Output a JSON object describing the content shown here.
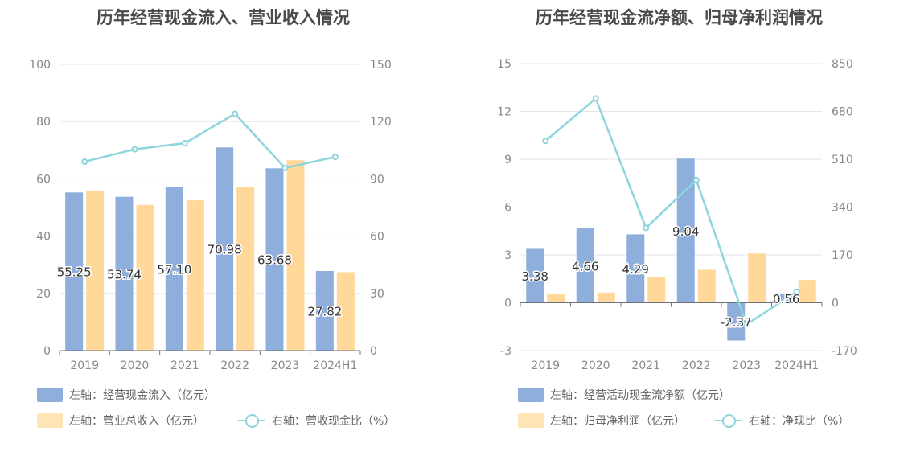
{
  "charts": [
    {
      "title": "历年经营现金流入、营业收入情况",
      "legend": [
        {
          "label": "左轴：经营现金流入（亿元）",
          "kind": "bar",
          "color": "#8eaedb"
        },
        {
          "label": "左轴：营业总收入（亿元）",
          "kind": "bar",
          "color": "#ffe4b5"
        },
        {
          "label": "右轴：营收现金比（%）",
          "kind": "line",
          "color": "#8dd5dc"
        }
      ]
    },
    {
      "title": "历年经营现金流净额、归母净利润情况",
      "legend": [
        {
          "label": "左轴：经营活动现金流净额（亿元）",
          "kind": "bar",
          "color": "#8eaedb"
        },
        {
          "label": "左轴：归母净利润（亿元）",
          "kind": "bar",
          "color": "#ffe4b5"
        },
        {
          "label": "右轴：净现比（%）",
          "kind": "line",
          "color": "#8dd5dc"
        }
      ]
    }
  ],
  "chart_data": [
    {
      "type": "bar",
      "title": "历年经营现金流入、营业收入情况",
      "categories": [
        "2019",
        "2020",
        "2021",
        "2022",
        "2023",
        "2024H1"
      ],
      "left_axis": {
        "ticks": [
          "0",
          "20",
          "40",
          "60",
          "80",
          "100"
        ],
        "ylim": [
          0,
          100
        ]
      },
      "right_axis": {
        "ticks": [
          "0",
          "30",
          "60",
          "90",
          "120",
          "150"
        ],
        "ylim": [
          0,
          150
        ]
      },
      "grid": true,
      "legend_position": "bottom",
      "series": [
        {
          "name": "左轴：经营现金流入（亿元）",
          "type": "bar",
          "axis": "left",
          "color": "#8eaedb",
          "values": [
            55.25,
            53.74,
            57.1,
            70.98,
            63.68,
            27.82
          ],
          "labels": [
            "55.25",
            "53.74",
            "57.10",
            "70.98",
            "63.68",
            "27.82"
          ]
        },
        {
          "name": "左轴：营业总收入（亿元）",
          "type": "bar",
          "axis": "left",
          "color": "#ffd89a",
          "values": [
            55.8,
            50.9,
            52.5,
            57.2,
            66.5,
            27.4
          ]
        },
        {
          "name": "右轴：营收现金比（%）",
          "type": "line",
          "axis": "right",
          "color": "#8dd5dc",
          "values": [
            99,
            105.5,
            108.7,
            124.1,
            95.7,
            101.5
          ]
        }
      ]
    },
    {
      "type": "bar",
      "title": "历年经营现金流净额、归母净利润情况",
      "categories": [
        "2019",
        "2020",
        "2021",
        "2022",
        "2023",
        "2024H1"
      ],
      "left_axis": {
        "ticks": [
          "-3",
          "0",
          "3",
          "6",
          "9",
          "12",
          "15"
        ],
        "ylim": [
          -3,
          15
        ]
      },
      "right_axis": {
        "ticks": [
          "-170",
          "0",
          "170",
          "340",
          "510",
          "680",
          "850"
        ],
        "ylim": [
          -170,
          850
        ]
      },
      "grid": true,
      "legend_position": "bottom",
      "series": [
        {
          "name": "左轴：经营活动现金流净额（亿元）",
          "type": "bar",
          "axis": "left",
          "color": "#8eaedb",
          "values": [
            3.38,
            4.66,
            4.29,
            9.04,
            -2.37,
            0.56
          ],
          "labels": [
            "3.38",
            "4.66",
            "4.29",
            "9.04",
            "-2.37",
            "0.56"
          ]
        },
        {
          "name": "左轴：归母净利润（亿元）",
          "type": "bar",
          "axis": "left",
          "color": "#ffd89a",
          "values": [
            0.58,
            0.64,
            1.62,
            2.07,
            3.09,
            1.43
          ]
        },
        {
          "name": "右轴：净现比（%）",
          "type": "line",
          "axis": "right",
          "color": "#8dd5dc",
          "values": [
            575,
            726,
            266,
            436,
            -77,
            39
          ]
        }
      ]
    }
  ]
}
